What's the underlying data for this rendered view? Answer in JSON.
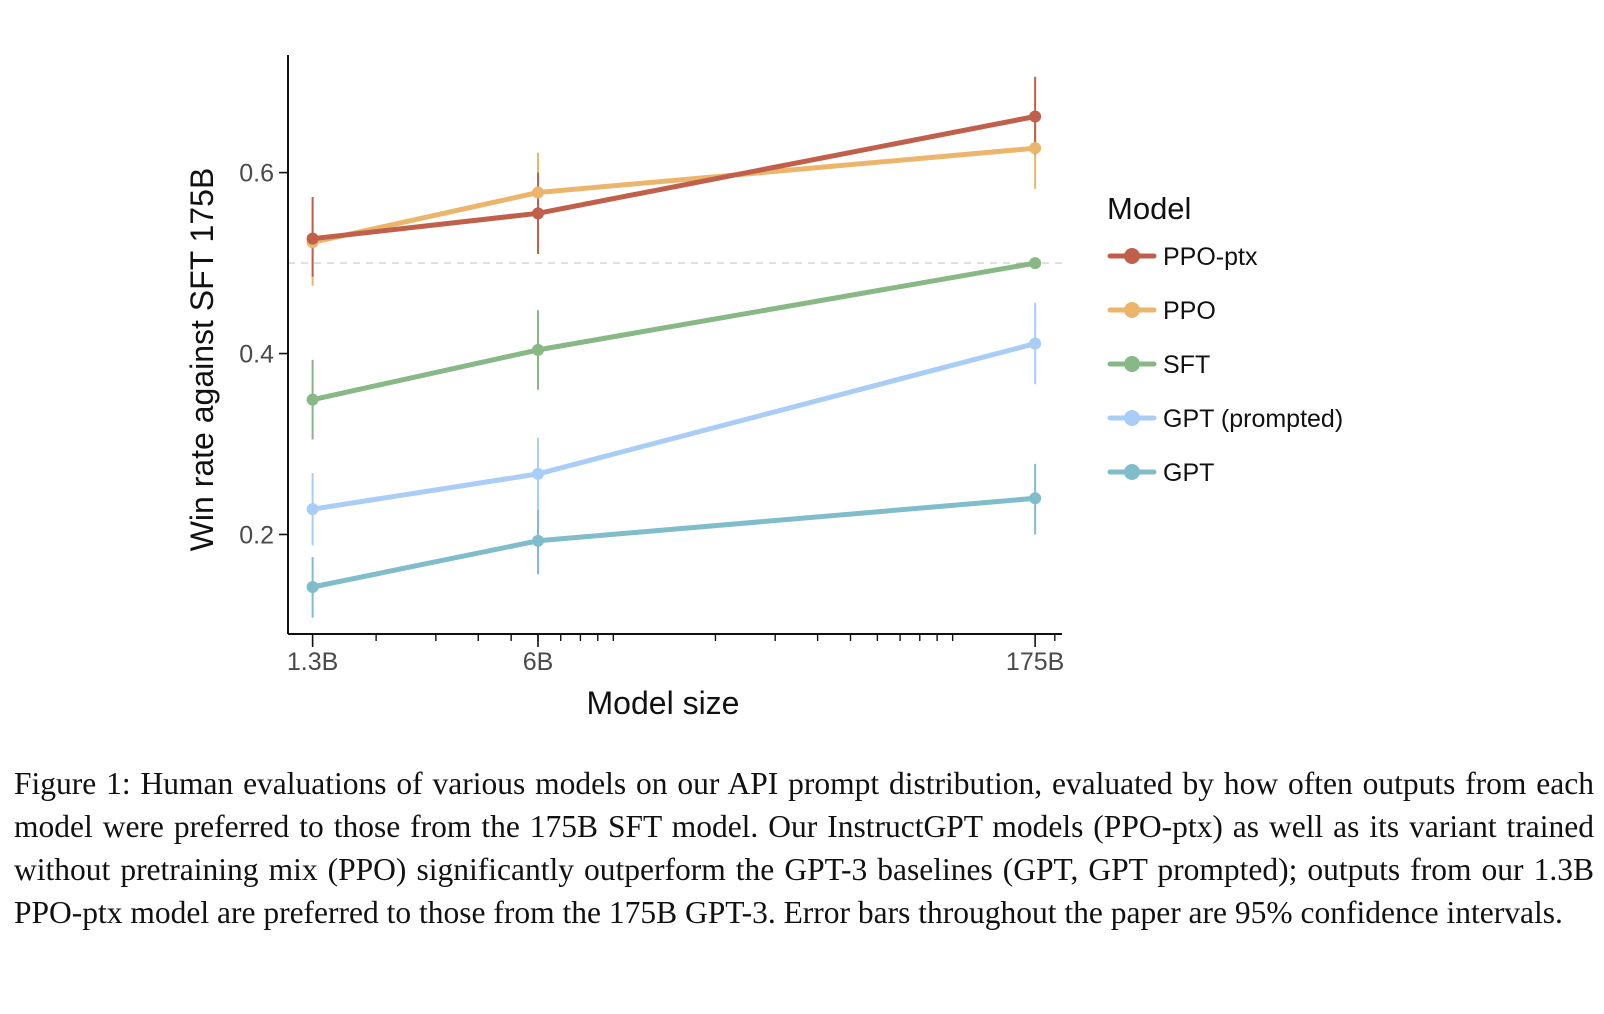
{
  "chart_data": {
    "type": "line",
    "xlabel": "Model size",
    "ylabel": "Win rate against SFT 175B",
    "x_scale": "log",
    "categories": [
      "1.3B",
      "6B",
      "175B"
    ],
    "x": [
      1.3,
      6,
      175
    ],
    "xlim": [
      1.1,
      210
    ],
    "ylim": [
      0.09,
      0.73
    ],
    "yticks": [
      0.2,
      0.4,
      0.6
    ],
    "ytick_labels": [
      "0.2",
      "0.4",
      "0.6"
    ],
    "reference_line": 0.5,
    "legend_title": "Model",
    "legend_position": "right",
    "series": [
      {
        "name": "PPO-ptx",
        "color": "#c0604a",
        "values": [
          0.527,
          0.555,
          0.662
        ],
        "err_low": [
          0.485,
          0.51,
          0.62
        ],
        "err_high": [
          0.573,
          0.6,
          0.706
        ]
      },
      {
        "name": "PPO",
        "color": "#ebb66b",
        "values": [
          0.523,
          0.578,
          0.627
        ],
        "err_low": [
          0.475,
          0.535,
          0.582
        ],
        "err_high": [
          0.568,
          0.622,
          0.665
        ]
      },
      {
        "name": "SFT",
        "color": "#88b886",
        "values": [
          0.349,
          0.404,
          0.5
        ],
        "err_low": [
          0.305,
          0.36,
          0.5
        ],
        "err_high": [
          0.393,
          0.448,
          0.5
        ]
      },
      {
        "name": "GPT (prompted)",
        "color": "#a9cdf6",
        "values": [
          0.228,
          0.267,
          0.411
        ],
        "err_low": [
          0.188,
          0.227,
          0.366
        ],
        "err_high": [
          0.268,
          0.307,
          0.456
        ]
      },
      {
        "name": "GPT",
        "color": "#7fbdcb",
        "values": [
          0.142,
          0.193,
          0.24
        ],
        "err_low": [
          0.108,
          0.156,
          0.2
        ],
        "err_high": [
          0.175,
          0.232,
          0.278
        ]
      }
    ]
  },
  "caption": {
    "text": "Figure 1: Human evaluations of various models on our API prompt distribution, evaluated by how often outputs from each model were preferred to those from the 175B SFT model. Our InstructGPT models (PPO-ptx) as well as its variant trained without pretraining mix (PPO) significantly outperform the GPT-3 baselines (GPT, GPT prompted); outputs from our 1.3B PPO-ptx model are preferred to those from the 175B GPT-3. Error bars throughout the paper are 95% confidence intervals."
  }
}
